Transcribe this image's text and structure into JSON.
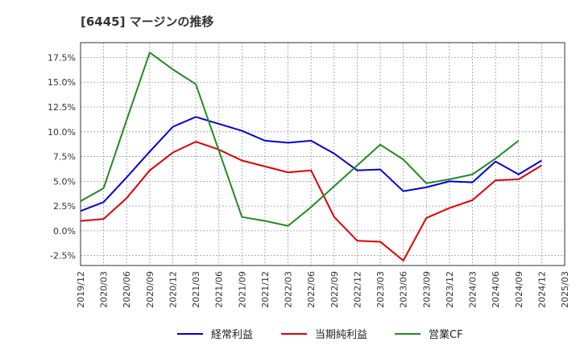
{
  "chart_data": {
    "type": "line",
    "title": "[6445]  マージンの推移",
    "xlabel": "",
    "ylabel": "",
    "x": [
      "2019/12",
      "2020/03",
      "2020/06",
      "2020/09",
      "2020/12",
      "2021/03",
      "2021/06",
      "2021/09",
      "2021/12",
      "2022/03",
      "2022/06",
      "2022/09",
      "2022/12",
      "2023/03",
      "2023/06",
      "2023/09",
      "2023/12",
      "2024/03",
      "2024/06",
      "2024/09",
      "2024/12",
      "2025/03"
    ],
    "ylim": [
      -3.5,
      19.0
    ],
    "yticks": [
      -2.5,
      0.0,
      2.5,
      5.0,
      7.5,
      10.0,
      12.5,
      15.0,
      17.5
    ],
    "ytick_labels": [
      "-2.5%",
      "0.0%",
      "2.5%",
      "5.0%",
      "7.5%",
      "10.0%",
      "12.5%",
      "15.0%",
      "17.5%"
    ],
    "grid": true,
    "legend_position": "bottom",
    "series": [
      {
        "name": "経常利益",
        "color": "#0000dd",
        "values": [
          2.0,
          2.9,
          5.4,
          8.0,
          10.5,
          11.5,
          10.8,
          10.1,
          9.1,
          8.9,
          9.1,
          7.8,
          6.1,
          6.2,
          4.0,
          4.4,
          5.0,
          4.9,
          7.0,
          5.7,
          7.1,
          null
        ]
      },
      {
        "name": "当期純利益",
        "color": "#dd0000",
        "values": [
          1.0,
          1.2,
          3.3,
          6.1,
          7.9,
          9.0,
          8.2,
          7.1,
          6.5,
          5.9,
          6.1,
          1.4,
          -1.0,
          -1.1,
          -3.0,
          1.3,
          2.3,
          3.1,
          5.1,
          5.2,
          6.6,
          null
        ]
      },
      {
        "name": "営業CF",
        "color": "#228b22",
        "values": [
          3.0,
          4.3,
          11.2,
          18.0,
          16.3,
          14.8,
          8.1,
          1.4,
          1.0,
          0.5,
          2.4,
          4.5,
          6.6,
          8.7,
          7.2,
          4.8,
          5.2,
          5.7,
          7.3,
          9.1,
          null,
          null
        ]
      }
    ]
  }
}
